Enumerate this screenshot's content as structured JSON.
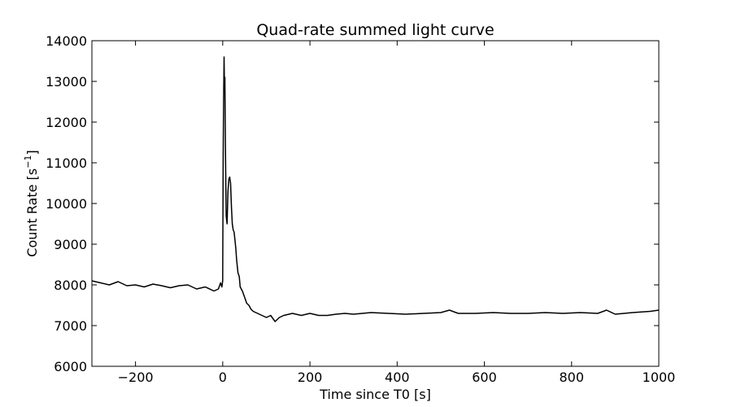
{
  "chart_data": {
    "type": "line",
    "title": "Quad-rate summed light curve",
    "xlabel": "Time since T0 [s]",
    "ylabel": "Count Rate [s",
    "ylabel_sup": "−1",
    "ylabel_close": "]",
    "xlim": [
      -300,
      1000
    ],
    "ylim": [
      6000,
      14000
    ],
    "xticks": [
      -200,
      0,
      200,
      400,
      600,
      800,
      1000
    ],
    "xtick_labels": [
      "−200",
      "0",
      "200",
      "400",
      "600",
      "800",
      "1000"
    ],
    "yticks": [
      6000,
      7000,
      8000,
      9000,
      10000,
      11000,
      12000,
      13000,
      14000
    ],
    "ytick_labels": [
      "6000",
      "7000",
      "8000",
      "9000",
      "10000",
      "11000",
      "12000",
      "13000",
      "14000"
    ],
    "grid": false,
    "line_color": "#000000",
    "series": [
      {
        "x": [
          -300,
          -280,
          -260,
          -240,
          -220,
          -200,
          -180,
          -160,
          -140,
          -120,
          -100,
          -80,
          -60,
          -40,
          -20,
          -10,
          -5,
          -2,
          0,
          1,
          2,
          3,
          4,
          5,
          6,
          8,
          10,
          12,
          14,
          16,
          18,
          20,
          22,
          24,
          26,
          28,
          30,
          32,
          35,
          38,
          40,
          45,
          50,
          55,
          60,
          65,
          70,
          80,
          90,
          100,
          110,
          120,
          130,
          140,
          160,
          180,
          200,
          220,
          240,
          260,
          280,
          300,
          340,
          380,
          420,
          460,
          500,
          520,
          540,
          580,
          620,
          660,
          700,
          740,
          780,
          820,
          860,
          880,
          900,
          940,
          980,
          1000
        ],
        "y": [
          8100,
          8050,
          8000,
          8080,
          7980,
          8000,
          7950,
          8020,
          7980,
          7930,
          7980,
          8000,
          7900,
          7950,
          7850,
          7900,
          8050,
          7950,
          8100,
          11200,
          12500,
          13600,
          12800,
          13100,
          11500,
          9700,
          9500,
          10300,
          10600,
          10650,
          10500,
          9900,
          9500,
          9350,
          9300,
          9100,
          8900,
          8600,
          8300,
          8200,
          7950,
          7850,
          7700,
          7550,
          7500,
          7400,
          7350,
          7300,
          7250,
          7200,
          7250,
          7100,
          7200,
          7250,
          7300,
          7250,
          7300,
          7250,
          7250,
          7280,
          7300,
          7280,
          7320,
          7300,
          7280,
          7300,
          7320,
          7380,
          7300,
          7300,
          7320,
          7300,
          7300,
          7320,
          7300,
          7320,
          7300,
          7380,
          7280,
          7320,
          7350,
          7380
        ]
      }
    ]
  }
}
